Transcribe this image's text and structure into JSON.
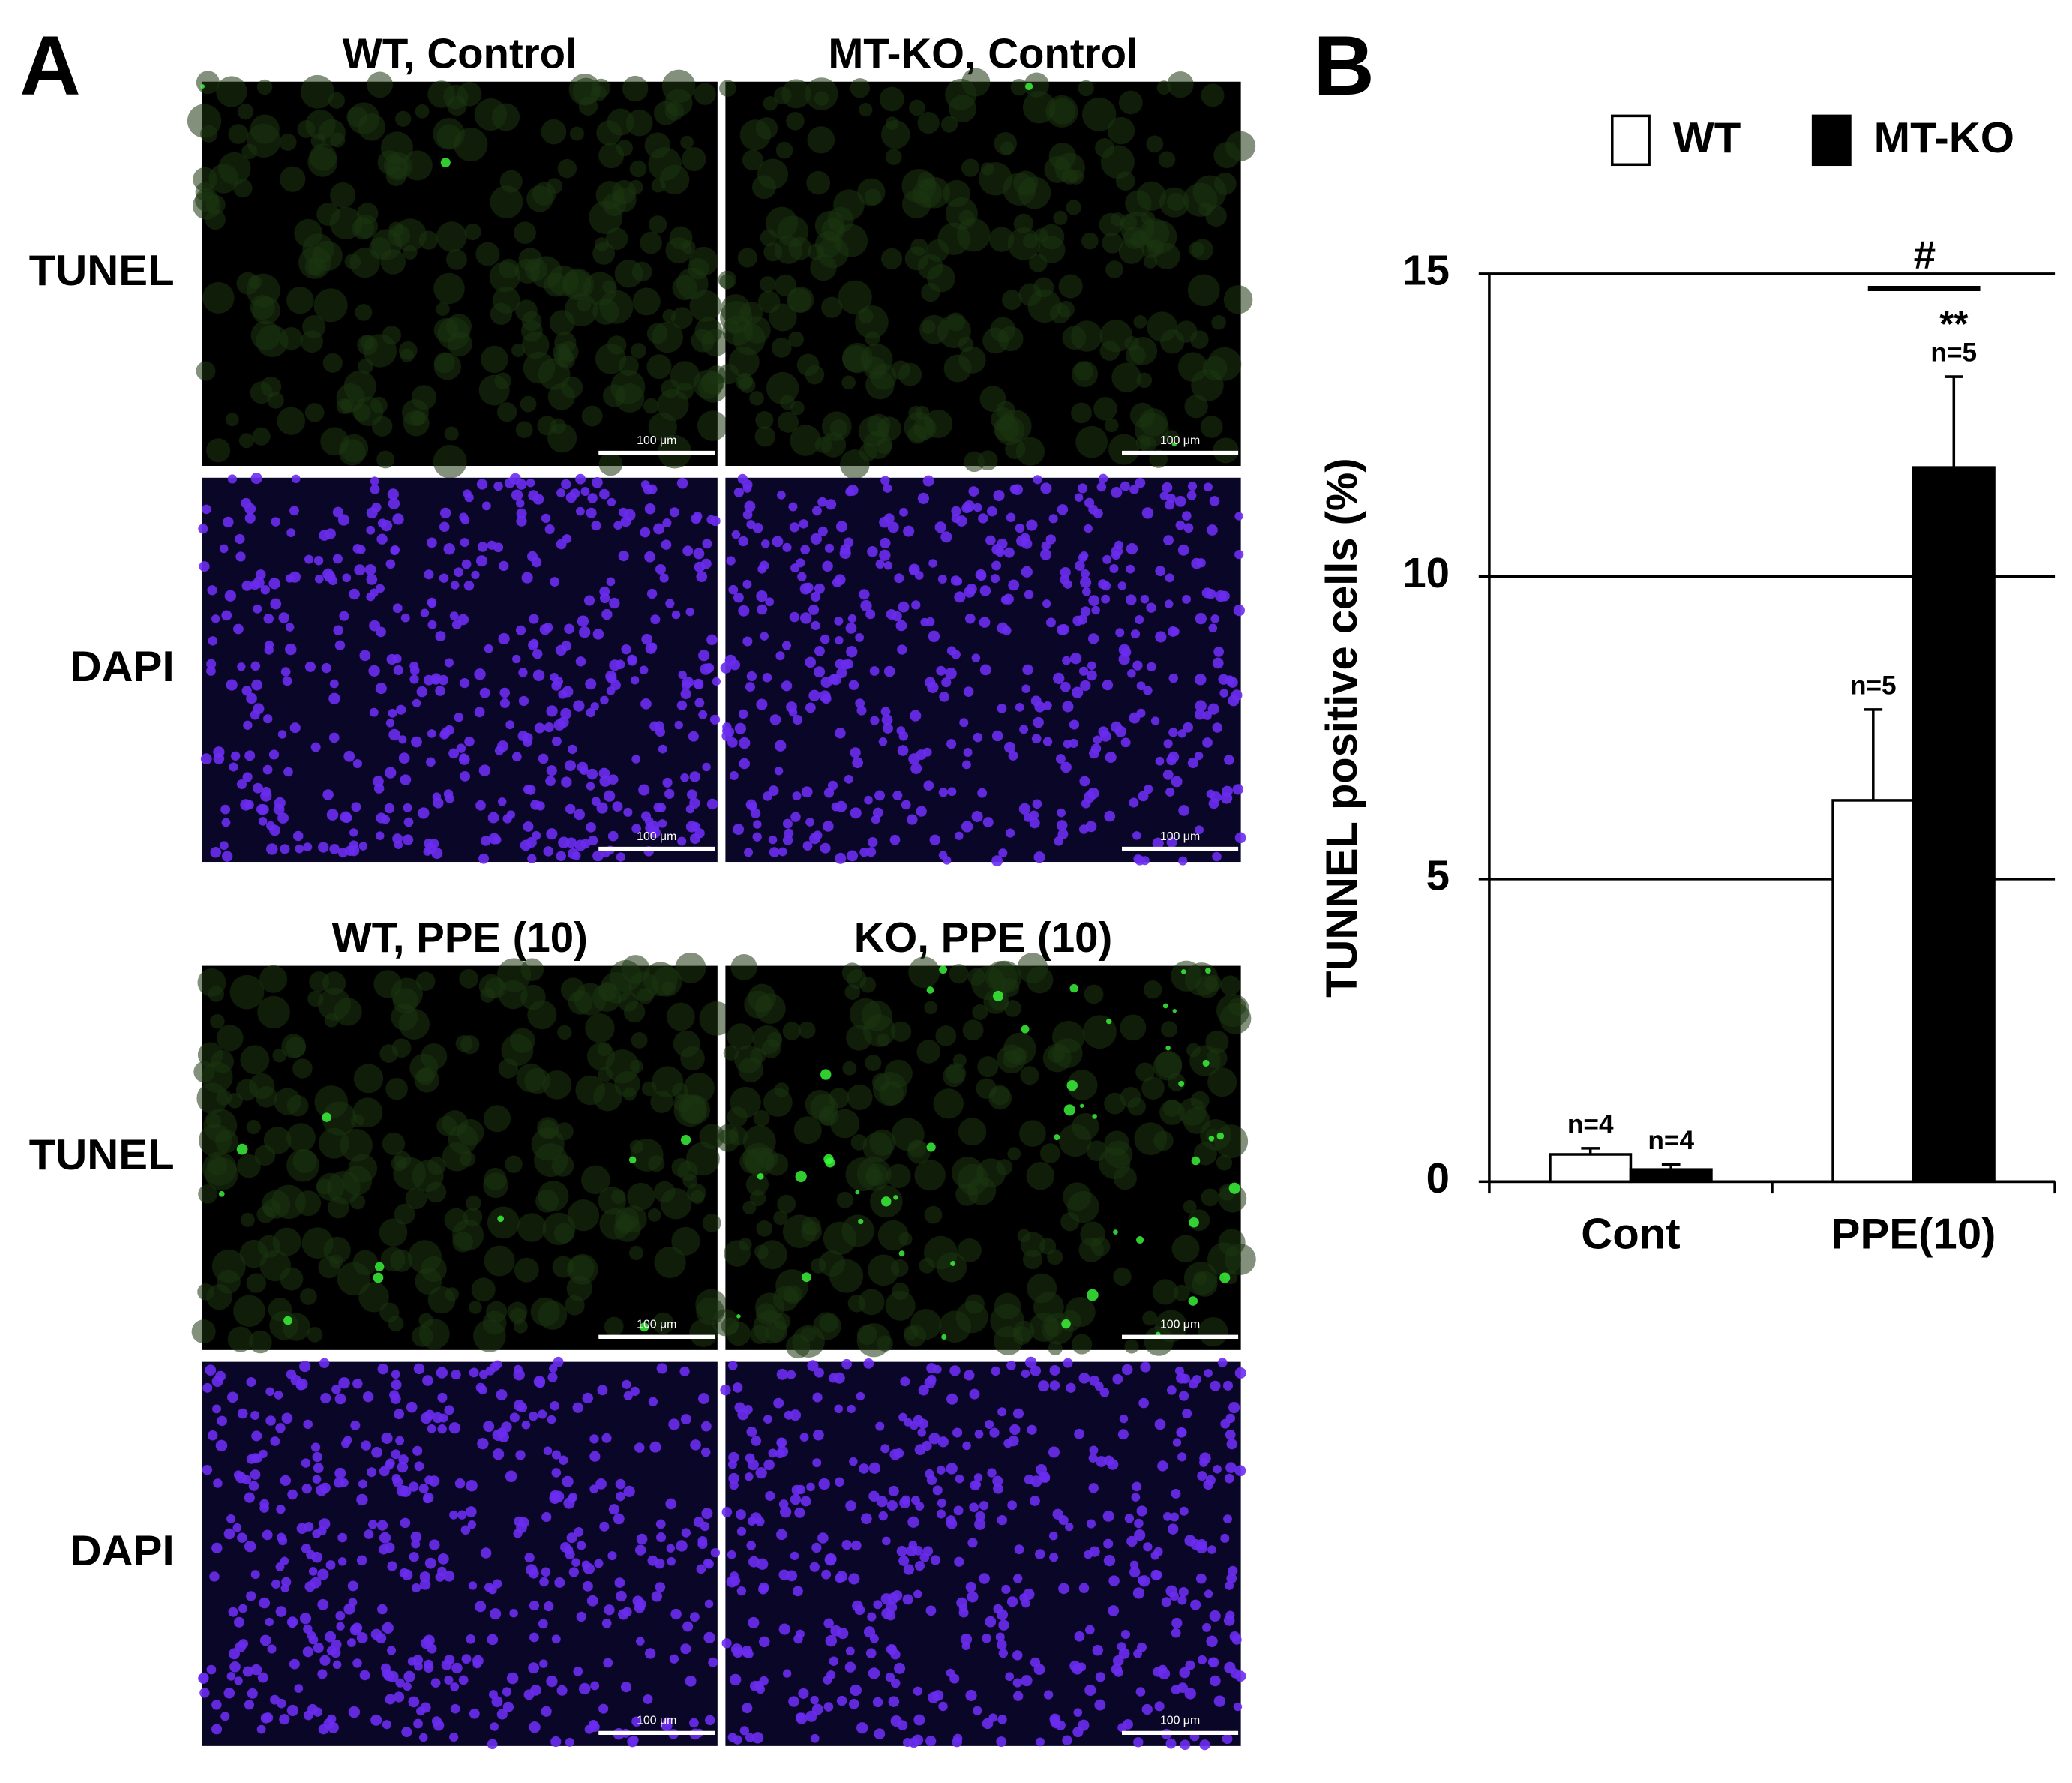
{
  "panel_labels": [
    "A",
    "B"
  ],
  "panel_a": {
    "groups": [
      {
        "columns": [
          "WT, Control",
          "MT-KO, Control"
        ],
        "rows": [
          "TUNEL",
          "DAPI"
        ]
      },
      {
        "columns": [
          "WT, PPE (10)",
          "KO, PPE (10)"
        ],
        "rows": [
          "TUNEL",
          "DAPI"
        ]
      }
    ],
    "scale_bar": "100 μm"
  },
  "chart_data": {
    "type": "bar",
    "ylabel": "TUNNEL positive cells (%)",
    "categories": [
      "Cont",
      "PPE(10)"
    ],
    "series": [
      {
        "name": "WT",
        "color": "#ffffff",
        "values": [
          0.45,
          6.3
        ],
        "errors": [
          0.1,
          1.5
        ],
        "n_labels": [
          "n=4",
          "n=5"
        ]
      },
      {
        "name": "MT-KO",
        "color": "#000000",
        "values": [
          0.2,
          11.8
        ],
        "errors": [
          0.08,
          1.5
        ],
        "n_labels": [
          "n=4",
          "n=5"
        ]
      }
    ],
    "annotations": [
      "#",
      "**"
    ],
    "ylim": [
      0,
      15
    ],
    "yticks": [
      0,
      5,
      10,
      15
    ],
    "grid": true,
    "legend": "top"
  }
}
